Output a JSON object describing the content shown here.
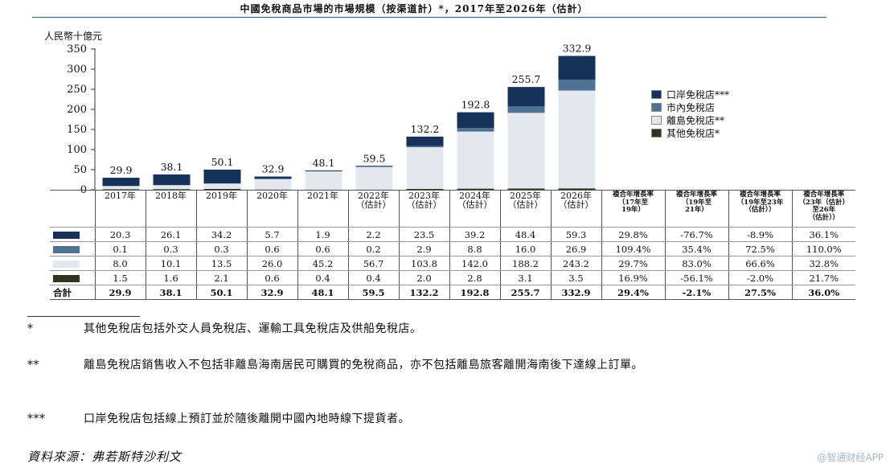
{
  "title": "中國免稅商品市場的市場規模（按渠道計）*，2017年至2026年（估計）",
  "unit_label": "人民幣十億元",
  "colors": {
    "port": "#17325a",
    "downtown": "#4f7293",
    "offshore": "#e4e7ee",
    "other": "#2f3320",
    "axis": "#333333"
  },
  "chart_data": {
    "type": "bar",
    "stacked": true,
    "title": "中國免稅商品市場的市場規模（按渠道計）*，2017年至2026年（估計）",
    "ylabel": "人民幣十億元",
    "ylim": [
      0,
      350
    ],
    "yticks": [
      0,
      50,
      100,
      150,
      200,
      250,
      300,
      350
    ],
    "categories": [
      "2017年",
      "2018年",
      "2019年",
      "2020年",
      "2021年",
      "2022年\n（估計）",
      "2023年\n（估計）",
      "2024年\n（估計）",
      "2025年\n（估計）",
      "2026年\n（估計）"
    ],
    "series": [
      {
        "key": "other",
        "name": "其他免稅店*",
        "values": [
          1.5,
          1.6,
          2.1,
          0.6,
          0.4,
          0.4,
          2.0,
          2.8,
          3.1,
          3.5
        ]
      },
      {
        "key": "offshore",
        "name": "離島免稅店**",
        "values": [
          8.0,
          10.1,
          13.5,
          26.0,
          45.2,
          56.7,
          103.8,
          142.0,
          188.2,
          243.2
        ]
      },
      {
        "key": "downtown",
        "name": "市內免稅店",
        "values": [
          0.1,
          0.3,
          0.3,
          0.6,
          0.6,
          0.2,
          2.9,
          8.8,
          16.0,
          26.9
        ]
      },
      {
        "key": "port",
        "name": "口岸免稅店***",
        "values": [
          20.3,
          26.1,
          34.2,
          5.7,
          1.9,
          2.2,
          23.5,
          39.2,
          48.4,
          59.3
        ]
      }
    ],
    "totals": [
      29.9,
      38.1,
      50.1,
      32.9,
      48.1,
      59.5,
      132.2,
      192.8,
      255.7,
      332.9
    ],
    "legend": [
      "口岸免稅店***",
      "市內免稅店",
      "離島免稅店**",
      "其他免稅店*"
    ],
    "legend_position": "right"
  },
  "table": {
    "headers": [
      "2017年",
      "2018年",
      "2019年",
      "2020年",
      "2021年",
      "2022年\n（估計）",
      "2023年\n（估計）",
      "2024年\n（估計）",
      "2025年\n（估計）",
      "2026年\n（估計）"
    ],
    "cagr_headers": [
      "複合年增長率\n（17年至\n19年）",
      "複合年增長率\n（19年至\n21年）",
      "複合年增長率\n（19年至23年\n（估計））",
      "複合年增長率\n（23年（估計）\n至26年\n（估計））"
    ],
    "rows": [
      {
        "key": "port",
        "values": [
          "20.3",
          "26.1",
          "34.2",
          "5.7",
          "1.9",
          "2.2",
          "23.5",
          "39.2",
          "48.4",
          "59.3",
          "29.8%",
          "-76.7%",
          "-8.9%",
          "36.1%"
        ]
      },
      {
        "key": "downtown",
        "values": [
          "0.1",
          "0.3",
          "0.3",
          "0.6",
          "0.6",
          "0.2",
          "2.9",
          "8.8",
          "16.0",
          "26.9",
          "109.4%",
          "35.4%",
          "72.5%",
          "110.0%"
        ]
      },
      {
        "key": "offshore",
        "values": [
          "8.0",
          "10.1",
          "13.5",
          "26.0",
          "45.2",
          "56.7",
          "103.8",
          "142.0",
          "188.2",
          "243.2",
          "29.7%",
          "83.0%",
          "66.6%",
          "32.8%"
        ]
      },
      {
        "key": "other",
        "values": [
          "1.5",
          "1.6",
          "2.1",
          "0.6",
          "0.4",
          "0.4",
          "2.0",
          "2.8",
          "3.1",
          "3.5",
          "16.9%",
          "-56.1%",
          "-2.0%",
          "21.7%"
        ]
      }
    ],
    "total_label": "合計",
    "total_values": [
      "29.9",
      "38.1",
      "50.1",
      "32.9",
      "48.1",
      "59.5",
      "132.2",
      "192.8",
      "255.7",
      "332.9",
      "29.4%",
      "-2.1%",
      "27.5%",
      "36.0%"
    ]
  },
  "footnotes": [
    {
      "mark": "*",
      "text": "其他免稅店包括外交人員免稅店、運輸工具免稅店及供船免稅店。"
    },
    {
      "mark": "**",
      "text": "離島免稅店銷售收入不包括非離島海南居民可購買的免稅商品，亦不包括離島旅客離開海南後下達線上訂單。"
    },
    {
      "mark": "***",
      "text": "口岸免稅店包括線上預訂並於隨後離開中國內地時線下提貨者。"
    }
  ],
  "source": "資料來源：弗若斯特沙利文",
  "watermark": "@智通财经APP"
}
